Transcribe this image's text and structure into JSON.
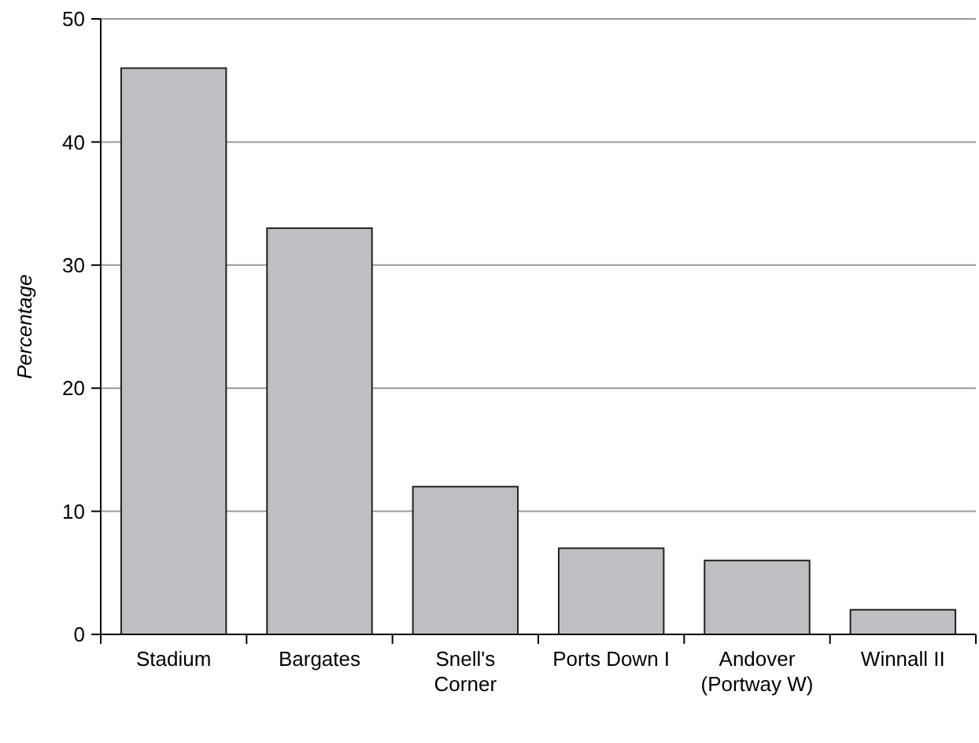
{
  "chart_data": {
    "type": "bar",
    "ylabel": "Percentage",
    "categories": [
      "Stadium",
      "Bargates",
      "Snell's Corner",
      "Ports Down I",
      "Andover (Portway W)",
      "Winnall II"
    ],
    "values": [
      46,
      33,
      12,
      7,
      6,
      2
    ],
    "color": "#bebec3",
    "ylim": [
      0,
      50
    ],
    "yticks": [
      0,
      10,
      20,
      30,
      40,
      50
    ],
    "grid": "y"
  }
}
